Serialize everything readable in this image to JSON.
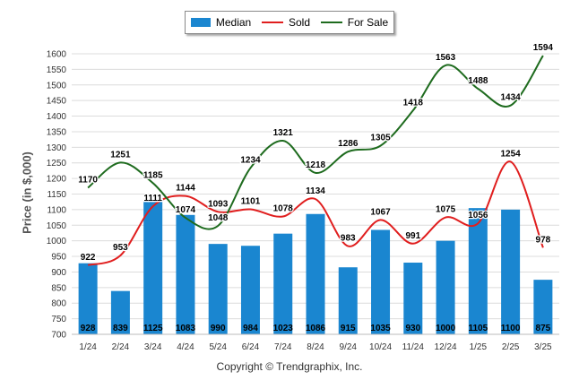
{
  "chart_data": {
    "type": "bar+line",
    "ylabel": "Price (in $,000)",
    "ylim": [
      700,
      1600
    ],
    "yticks": [
      700,
      750,
      800,
      850,
      900,
      950,
      1000,
      1050,
      1100,
      1150,
      1200,
      1250,
      1300,
      1350,
      1400,
      1450,
      1500,
      1550,
      1600
    ],
    "grid": true,
    "legend_position": "top-center",
    "categories": [
      "1/24",
      "2/24",
      "3/24",
      "4/24",
      "5/24",
      "6/24",
      "7/24",
      "8/24",
      "9/24",
      "10/24",
      "11/24",
      "12/24",
      "1/25",
      "2/25",
      "3/25"
    ],
    "series": [
      {
        "name": "Median",
        "type": "bar",
        "color": "#1a86d0",
        "values": [
          928,
          839,
          1125,
          1083,
          990,
          984,
          1023,
          1086,
          915,
          1035,
          930,
          1000,
          1105,
          1100,
          875
        ]
      },
      {
        "name": "Sold",
        "type": "line",
        "color": "#e01e1e",
        "values": [
          922,
          953,
          1111,
          1144,
          1093,
          1101,
          1078,
          1134,
          983,
          1067,
          991,
          1075,
          1056,
          1254,
          978
        ]
      },
      {
        "name": "For Sale",
        "type": "line",
        "color": "#1e6b1e",
        "values": [
          1170,
          1251,
          1185,
          1074,
          1048,
          1234,
          1321,
          1218,
          1286,
          1305,
          1418,
          1563,
          1488,
          1434,
          1594
        ]
      }
    ]
  },
  "footer": {
    "copyright": "Copyright © Trendgraphix, Inc."
  }
}
